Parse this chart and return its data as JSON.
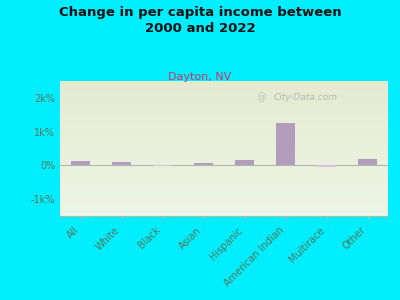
{
  "title": "Change in per capita income between\n2000 and 2022",
  "subtitle": "Dayton, NV",
  "watermark": "City-Data.com",
  "categories": [
    "All",
    "White",
    "Black",
    "Asian",
    "Hispanic",
    "American Indian",
    "Multirace",
    "Other"
  ],
  "values": [
    120,
    110,
    -30,
    80,
    150,
    1250,
    -50,
    200
  ],
  "bar_color": "#b39dbd",
  "bar_color_negative": "#d4c4dc",
  "bg_color": "#00eeff",
  "title_color": "#111111",
  "subtitle_color": "#cc3366",
  "ylabel_ticks": [
    "-1k%",
    "0%",
    "1k%",
    "2k%"
  ],
  "ylim": [
    -1500,
    2500
  ],
  "yticks": [
    -1000,
    0,
    1000,
    2000
  ],
  "figsize": [
    4.0,
    3.0
  ],
  "dpi": 100
}
